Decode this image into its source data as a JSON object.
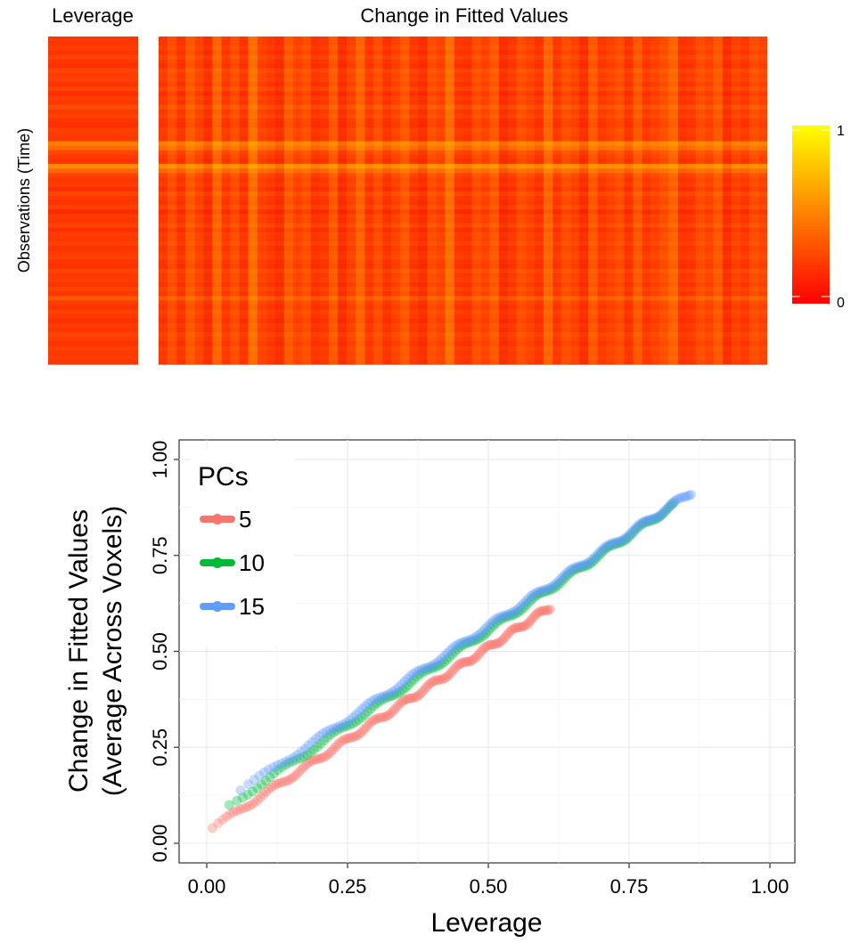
{
  "chart_data": [
    {
      "type": "heatmap",
      "title": "Leverage",
      "ylabel": "Observations (Time)",
      "n_rows": 72,
      "colorscale": {
        "low": "#ff0000",
        "high": "#ffff00",
        "min": 0,
        "max": 1,
        "tick_labels": [
          "1",
          "0"
        ]
      },
      "row_values": [
        0.22,
        0.21,
        0.24,
        0.2,
        0.26,
        0.22,
        0.19,
        0.28,
        0.23,
        0.25,
        0.2,
        0.27,
        0.18,
        0.24,
        0.21,
        0.3,
        0.22,
        0.26,
        0.2,
        0.19,
        0.25,
        0.23,
        0.21,
        0.5,
        0.42,
        0.27,
        0.22,
        0.2,
        0.55,
        0.4,
        0.26,
        0.21,
        0.24,
        0.18,
        0.28,
        0.22,
        0.2,
        0.25,
        0.16,
        0.23,
        0.21,
        0.27,
        0.19,
        0.24,
        0.22,
        0.26,
        0.2,
        0.23,
        0.25,
        0.21,
        0.19,
        0.27,
        0.22,
        0.24,
        0.2,
        0.26,
        0.21,
        0.35,
        0.23,
        0.2,
        0.25,
        0.22,
        0.19,
        0.24,
        0.21,
        0.27,
        0.23,
        0.2,
        0.25,
        0.22,
        0.24,
        0.21
      ]
    },
    {
      "type": "heatmap",
      "title": "Change in Fitted Values",
      "n_rows": 72,
      "n_cols": 68,
      "col_modifiers": [
        0,
        0.02,
        -0.01,
        0.03,
        0.01,
        -0.02,
        0.04,
        0,
        0.02,
        -0.01,
        0.05,
        0.01,
        0,
        -0.02,
        0.03,
        0.01,
        0.02,
        -0.01,
        0,
        0.03,
        -0.02,
        0.01,
        0.04,
        0,
        0.02,
        -0.01,
        0.01,
        0.03,
        0,
        -0.02,
        0.02,
        0.01,
        0.05,
        0,
        -0.01,
        0.02,
        0.01,
        0.03,
        -0.02,
        0,
        0.02,
        0.01,
        -0.01,
        0.04,
        0,
        0.02,
        0.01,
        -0.02,
        0.03,
        0,
        0.01,
        0.02,
        -0.01,
        0.03,
        0,
        0.01,
        0.02,
        0.04,
        -0.01,
        0,
        0.02,
        0.01,
        0.03,
        -0.02,
        0.01,
        0,
        0.02,
        0.01
      ]
    },
    {
      "type": "scatter",
      "xlabel": "Leverage",
      "ylabel": "Change in Fitted Values",
      "ylabel2": "(Average Across Voxels)",
      "xlim": [
        0,
        1
      ],
      "ylim": [
        0,
        1
      ],
      "x_ticks": [
        "0.00",
        "0.25",
        "0.50",
        "0.75",
        "1.00"
      ],
      "y_ticks": [
        "0.00",
        "0.25",
        "0.50",
        "0.75",
        "1.00"
      ],
      "grid": true,
      "legend": {
        "title": "PCs",
        "placement": "top-left"
      },
      "series": [
        {
          "name": "5",
          "color": "#f8766d",
          "x_range": [
            0.01,
            0.61
          ],
          "slope": 0.96,
          "intercept": 0.03
        },
        {
          "name": "10",
          "color": "#00ba38",
          "x_range": [
            0.04,
            0.83
          ],
          "slope": 0.99,
          "intercept": 0.06
        },
        {
          "name": "15",
          "color": "#619cff",
          "x_range": [
            0.06,
            0.86
          ],
          "slope": 0.97,
          "intercept": 0.08
        }
      ]
    }
  ]
}
